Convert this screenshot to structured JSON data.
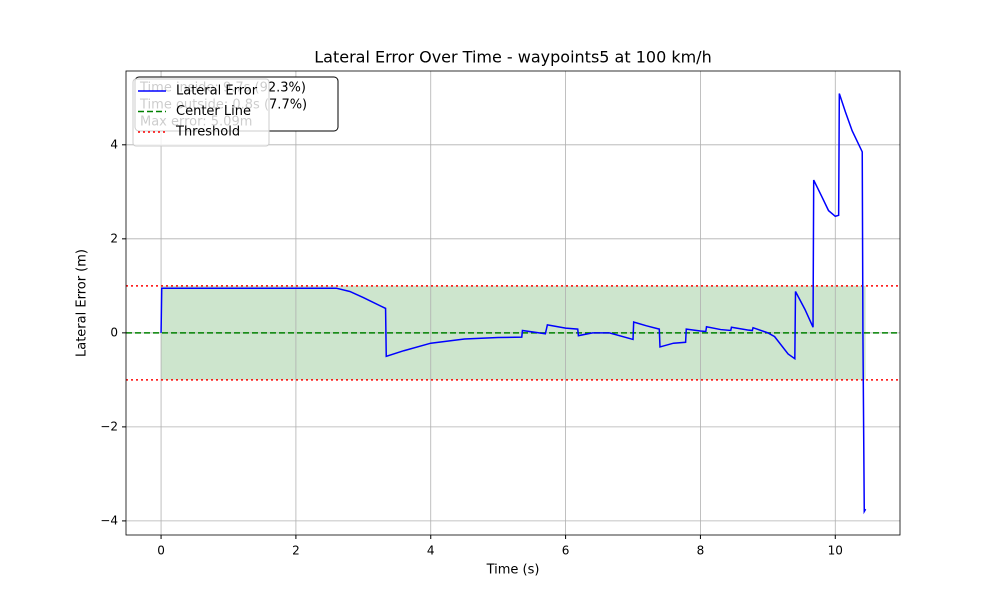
{
  "chart_data": {
    "type": "line",
    "title": "Lateral Error Over Time - waypoints5 at 100 km/h",
    "x_label": "Time (s)",
    "y_label": "Lateral Error (m)",
    "x": [
      0,
      0.01,
      2.6,
      2.8,
      3.0,
      3.33,
      3.34,
      3.6,
      4.0,
      4.5,
      5.0,
      5.35,
      5.36,
      5.7,
      5.73,
      6.0,
      6.18,
      6.19,
      6.4,
      6.65,
      7.0,
      7.01,
      7.2,
      7.39,
      7.4,
      7.6,
      7.78,
      7.79,
      8.0,
      8.08,
      8.09,
      8.3,
      8.45,
      8.46,
      8.7,
      8.77,
      8.78,
      9.0,
      9.1,
      9.3,
      9.4,
      9.41,
      9.55,
      9.67,
      9.68,
      9.8,
      9.9,
      10.0,
      10.05,
      10.06,
      10.15,
      10.25,
      10.35,
      10.4,
      10.41,
      10.43,
      10.45
    ],
    "series": [
      {
        "name": "Lateral Error",
        "color": "#0000ff",
        "values": [
          0,
          0.95,
          0.95,
          0.88,
          0.75,
          0.52,
          -0.5,
          -0.38,
          -0.22,
          -0.13,
          -0.1,
          -0.09,
          0.05,
          -0.02,
          0.17,
          0.1,
          0.08,
          -0.06,
          0,
          0,
          -0.14,
          0.23,
          0.15,
          0.08,
          -0.3,
          -0.22,
          -0.2,
          0.08,
          0.04,
          0.03,
          0.13,
          0.07,
          0.05,
          0.12,
          0.06,
          0.05,
          0.11,
          0,
          -0.08,
          -0.45,
          -0.55,
          0.88,
          0.5,
          0.12,
          3.25,
          2.9,
          2.6,
          2.48,
          2.5,
          5.09,
          4.7,
          4.3,
          4.0,
          3.85,
          0,
          -3.8,
          -3.75
        ]
      }
    ],
    "reference_lines": [
      {
        "name": "Center Line",
        "color": "#008000",
        "style": "dashed",
        "y": [
          0
        ]
      },
      {
        "name": "Threshold",
        "color": "#ff0000",
        "style": "dotted",
        "y": [
          1,
          -1
        ]
      }
    ],
    "band_color": "#cde5cd",
    "annotation": [
      "Time inside: 9.7s (92.3%)",
      "Time outside: 0.8s (7.7%)",
      "Max error: 5.09m"
    ],
    "xlim": [
      -0.52,
      10.96
    ],
    "ylim": [
      -4.3,
      5.57
    ],
    "xticks": [
      0,
      2,
      4,
      6,
      8,
      10
    ],
    "yticks": [
      {
        "value": -4,
        "label": "−4"
      },
      {
        "value": -2,
        "label": "−2"
      },
      0,
      2,
      4
    ],
    "grid": true,
    "legend": "upper left"
  }
}
